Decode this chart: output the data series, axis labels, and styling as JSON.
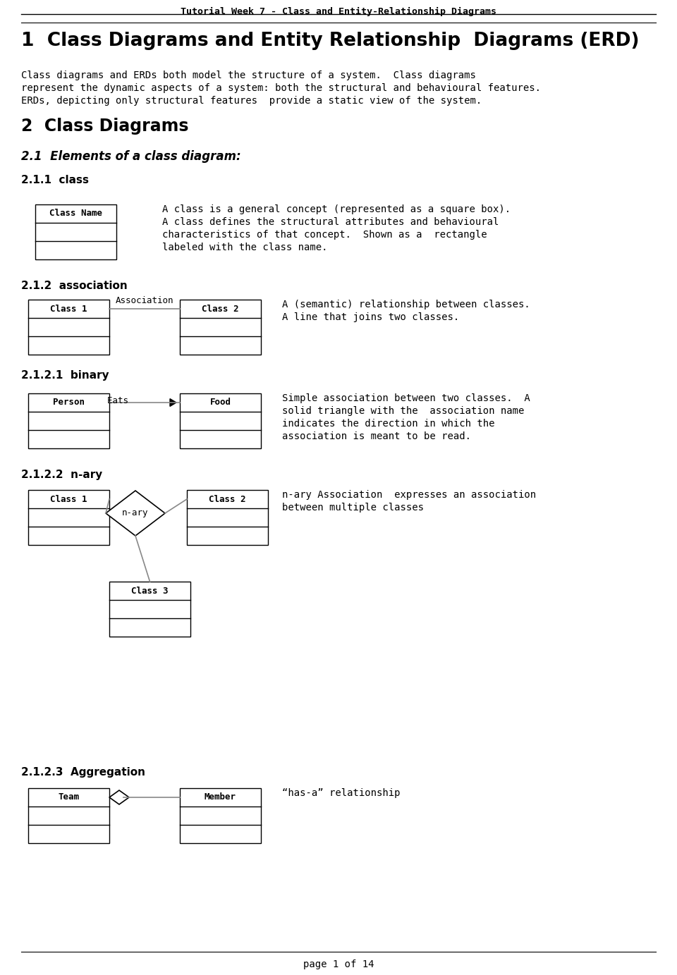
{
  "title_header": "Tutorial Week 7 - Class and Entity-Relationship Diagrams",
  "section1_title": "1  Class Diagrams and Entity Relationship  Diagrams (ERD)",
  "section1_body_l1": "Class diagrams and ERDs both model the structure of a system.  Class diagrams",
  "section1_body_l2": "represent the dynamic aspects of a system: both the structural and behavioural features.",
  "section1_body_l3": "ERDs, depicting only structural features  provide a static view of the system.",
  "section2_title": "2  Class Diagrams",
  "section21_title": "2.1  Elements of a class diagram:",
  "section211_title": "2.1.1  class",
  "section211_text_l1": "A class is a general concept (represented as a square box).",
  "section211_text_l2": "A class defines the structural attributes and behavioural",
  "section211_text_l3": "characteristics of that concept.  Shown as a  rectangle",
  "section211_text_l4": "labeled with the class name.",
  "section212_title": "2.1.2  association",
  "section212_text_l1": "A (semantic) relationship between classes.",
  "section212_text_l2": "A line that joins two classes.",
  "section2121_title": "2.1.2.1  binary",
  "section2121_text_l1": "Simple association between two classes.  A",
  "section2121_text_l2": "solid triangle with the  association name",
  "section2121_text_l3": "indicates the direction in which the",
  "section2121_text_l4": "association is meant to be read.",
  "section2122_title": "2.1.2.2  n-ary",
  "section2122_text_l1": "n-ary Association  expresses an association",
  "section2122_text_l2": "between multiple classes",
  "section2123_title": "2.1.2.3  Aggregation",
  "section2123_text": "“has-a” relationship",
  "footer": "page 1 of 14",
  "bg_color": "#ffffff",
  "text_color": "#000000",
  "box_edge_color": "#000000",
  "line_color": "#888888",
  "header_line_color": "#000000",
  "fig_width": 9.6,
  "fig_height": 13.83,
  "dpi": 100
}
